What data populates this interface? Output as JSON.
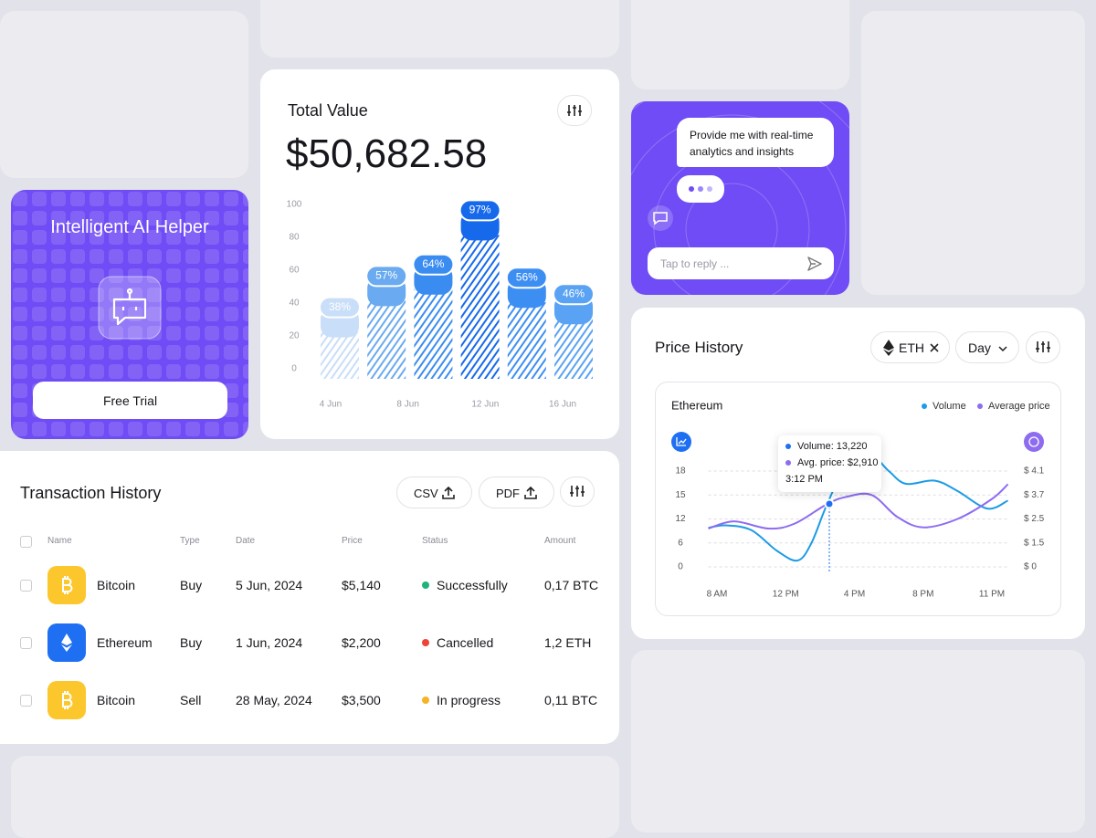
{
  "ai_helper": {
    "title": "Intelligent AI Helper",
    "button": "Free Trial"
  },
  "total_value": {
    "title": "Total Value",
    "amount": "$50,682.58",
    "chart": {
      "type": "bar",
      "values": [
        38,
        57,
        64,
        97,
        56,
        46
      ],
      "value_labels": [
        "38%",
        "57%",
        "64%",
        "97%",
        "56%",
        "46%"
      ],
      "colors": [
        "#c9def8",
        "#6aaaf0",
        "#3b8cf0",
        "#1769ec",
        "#3d8ef2",
        "#5aa2f3"
      ],
      "ylim": [
        0,
        100
      ],
      "yticks": [
        0,
        20,
        40,
        60,
        80,
        100
      ],
      "xticks": [
        "4 Jun",
        "8 Jun",
        "12 Jun",
        "16 Jun"
      ]
    }
  },
  "chat": {
    "message": "Provide me with real-time analytics and insights",
    "reply_placeholder": "Tap to reply ..."
  },
  "price_history": {
    "title": "Price History",
    "asset": "ETH",
    "period": "Day",
    "chart": {
      "type": "line",
      "title": "Ethereum",
      "xlim": [
        7.5,
        23.7
      ],
      "xticks": [
        {
          "value": 8,
          "label": "8 AM"
        },
        {
          "value": 12,
          "label": "12 PM"
        },
        {
          "value": 16,
          "label": "4 PM"
        },
        {
          "value": 20,
          "label": "8 PM"
        },
        {
          "value": 23,
          "label": "11 PM"
        }
      ],
      "yticks": [
        0,
        6,
        12,
        15,
        18
      ],
      "y2ticks": [
        {
          "value": 0,
          "label": "$ 0"
        },
        {
          "value": 1.5,
          "label": "$ 1.5"
        },
        {
          "value": 2.5,
          "label": "$ 2.5"
        },
        {
          "value": 3.7,
          "label": "$ 3.7"
        },
        {
          "value": 4.1,
          "label": "$ 4.1"
        }
      ],
      "series": [
        {
          "name": "Volume",
          "color": "#1c9be6",
          "x": [
            7.5,
            8.5,
            10,
            11.5,
            12.7,
            13.5,
            14.4,
            15.5,
            16.8,
            18,
            19,
            20.5,
            21.5,
            22.8,
            23.7
          ],
          "values": [
            9.8,
            10.4,
            9.2,
            4,
            1.6,
            6,
            13.8,
            18.5,
            20.3,
            18,
            16.4,
            16.8,
            15.5,
            13.3,
            14.3
          ]
        },
        {
          "name": "Average price",
          "color": "#8d6cf0",
          "axis": "y2",
          "x": [
            7.5,
            9,
            11,
            12.5,
            14.4,
            15.5,
            17,
            18.5,
            20,
            21.5,
            23,
            23.7
          ],
          "values": [
            2.1,
            2.4,
            2.1,
            2.3,
            3.24,
            3.6,
            3.7,
            2.6,
            2.15,
            2.5,
            3.5,
            3.88
          ]
        }
      ],
      "tooltip": {
        "volume": "Volume: 13,220",
        "avg_price": "Avg. price: $2,910",
        "time": "3:12 PM"
      }
    }
  },
  "transactions": {
    "title": "Transaction History",
    "buttons": [
      "CSV",
      "PDF"
    ],
    "columns": [
      "Name",
      "Type",
      "Date",
      "Price",
      "Status",
      "Amount"
    ],
    "rows": [
      {
        "name": "Bitcoin",
        "type": "Buy",
        "date": "5 Jun, 2024",
        "price": "$5,140",
        "status": "Successfully",
        "amount": "0,17 BTC",
        "icon": "btc",
        "icon_color": "#fcc72c",
        "status_color": "#1fb27b"
      },
      {
        "name": "Ethereum",
        "type": "Buy",
        "date": "1 Jun, 2024",
        "price": "$2,200",
        "status": "Cancelled",
        "amount": "1,2 ETH",
        "icon": "eth",
        "icon_color": "#1e6ff2",
        "status_color": "#ee4337"
      },
      {
        "name": "Bitcoin",
        "type": "Sell",
        "date": "28 May, 2024",
        "price": "$3,500",
        "status": "In progress",
        "amount": "0,11 BTC",
        "icon": "btc",
        "icon_color": "#fcc72c",
        "status_color": "#f6b326"
      }
    ]
  }
}
